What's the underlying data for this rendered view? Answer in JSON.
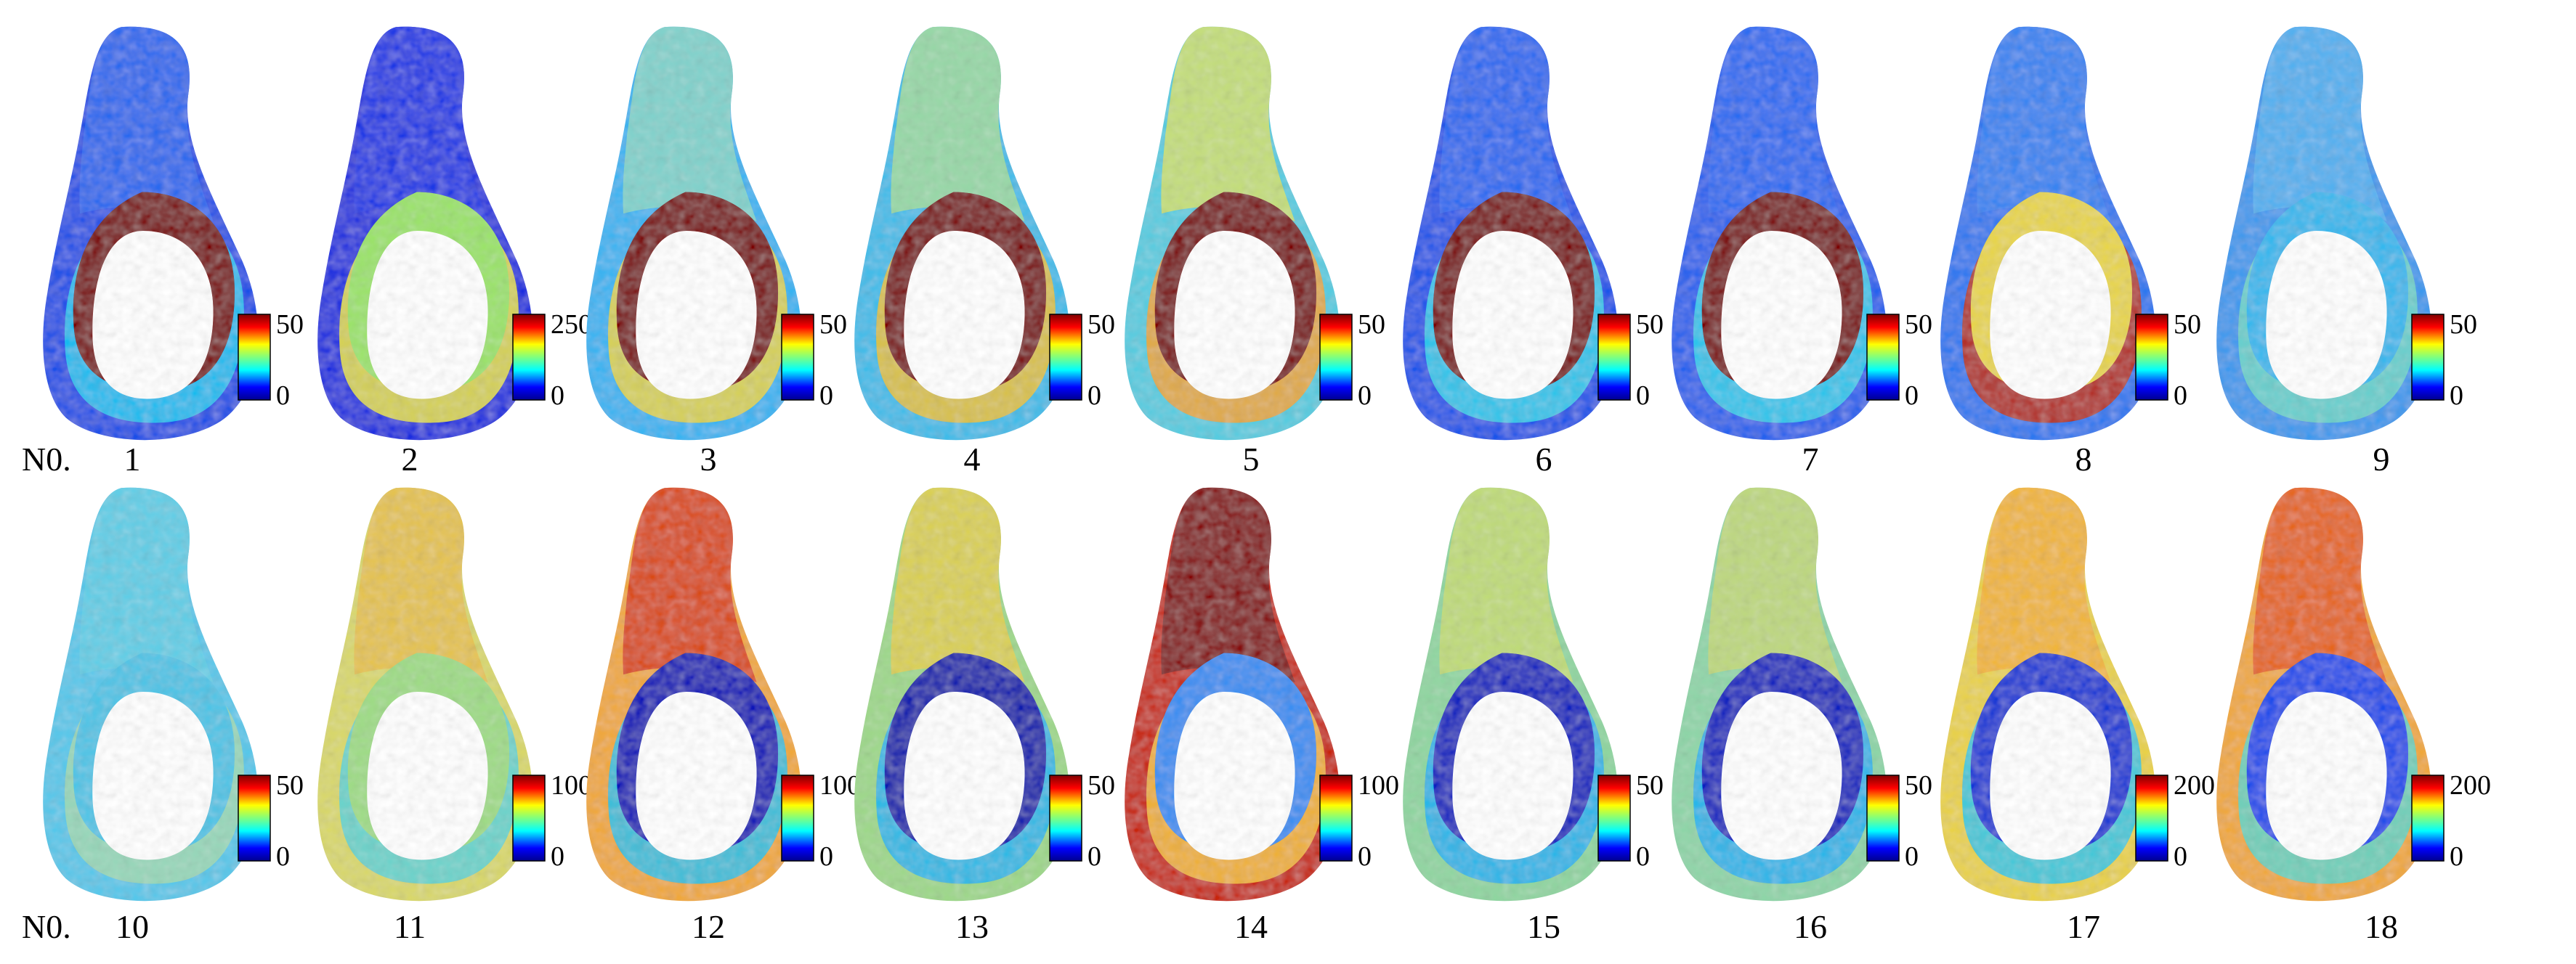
{
  "rows": [
    {
      "prefix": "N0.",
      "panels": [
        {
          "number": "1",
          "scale": {
            "max": "50",
            "min": "0"
          },
          "rim": "#7b0000",
          "body": "#1d4fe8",
          "tip": "#2c6df0",
          "inner": "#19c6f0"
        },
        {
          "number": "2",
          "scale": {
            "max": "250",
            "min": "0"
          },
          "rim": "#9be36a",
          "body": "#1a2ee0",
          "tip": "#1e38e6",
          "inner": "#e9e24a"
        },
        {
          "number": "3",
          "scale": {
            "max": "50",
            "min": "0"
          },
          "rim": "#7b0000",
          "body": "#37b4f2",
          "tip": "#8ed7c6",
          "inner": "#e7d34a"
        },
        {
          "number": "4",
          "scale": {
            "max": "50",
            "min": "0"
          },
          "rim": "#7b0000",
          "body": "#3fbce9",
          "tip": "#a7dd9b",
          "inner": "#e9c13c"
        },
        {
          "number": "5",
          "scale": {
            "max": "50",
            "min": "0"
          },
          "rim": "#7b0000",
          "body": "#56cce0",
          "tip": "#d7e06a",
          "inner": "#f0a638"
        },
        {
          "number": "6",
          "scale": {
            "max": "50",
            "min": "0"
          },
          "rim": "#7b0000",
          "body": "#1f55ea",
          "tip": "#2b6ff2",
          "inner": "#2fd0ea"
        },
        {
          "number": "7",
          "scale": {
            "max": "50",
            "min": "0"
          },
          "rim": "#7b0000",
          "body": "#2562ee",
          "tip": "#2b6ff2",
          "inner": "#2fd0ea"
        },
        {
          "number": "8",
          "scale": {
            "max": "50",
            "min": "0"
          },
          "rim": "#e8d54b",
          "body": "#2f78f0",
          "tip": "#3a86f2",
          "inner": "#c22a13"
        },
        {
          "number": "9",
          "scale": {
            "max": "50",
            "min": "0"
          },
          "rim": "#35b8ee",
          "body": "#3d99ee",
          "tip": "#56b4f0",
          "inner": "#6ed5c9"
        }
      ]
    },
    {
      "prefix": "N0.",
      "panels": [
        {
          "number": "10",
          "scale": {
            "max": "50",
            "min": "0"
          },
          "rim": "#4ec4e6",
          "body": "#57c7ea",
          "tip": "#62cfe5",
          "inner": "#9ed8b5"
        },
        {
          "number": "11",
          "scale": {
            "max": "100",
            "min": "0"
          },
          "rim": "#9fdc86",
          "body": "#d9d86a",
          "tip": "#e6c04a",
          "inner": "#5fd3d6"
        },
        {
          "number": "12",
          "scale": {
            "max": "100",
            "min": "0"
          },
          "rim": "#0a18b8",
          "body": "#f0a83a",
          "tip": "#d63c12",
          "inner": "#2cc0ea"
        },
        {
          "number": "13",
          "scale": {
            "max": "50",
            "min": "0"
          },
          "rim": "#0a1cae",
          "body": "#9ed88a",
          "tip": "#e4cf4a",
          "inner": "#22b6ee"
        },
        {
          "number": "14",
          "scale": {
            "max": "100",
            "min": "0"
          },
          "rim": "#3a8ef2",
          "body": "#c8260e",
          "tip": "#7a0000",
          "inner": "#f2c03c"
        },
        {
          "number": "15",
          "scale": {
            "max": "50",
            "min": "0"
          },
          "rim": "#0d22c0",
          "body": "#8fd6a0",
          "tip": "#c9dc72",
          "inner": "#1eb3ef"
        },
        {
          "number": "16",
          "scale": {
            "max": "50",
            "min": "0"
          },
          "rim": "#0d22c0",
          "body": "#8ed5a8",
          "tip": "#c7d878",
          "inner": "#1eb3ef"
        },
        {
          "number": "17",
          "scale": {
            "max": "200",
            "min": "0"
          },
          "rim": "#1238d6",
          "body": "#e9d24a",
          "tip": "#f2b238",
          "inner": "#33c6e8"
        },
        {
          "number": "18",
          "scale": {
            "max": "200",
            "min": "0"
          },
          "rim": "#1a4cec",
          "body": "#f0a83a",
          "tip": "#e45a1a",
          "inner": "#63d3c8"
        }
      ]
    }
  ]
}
